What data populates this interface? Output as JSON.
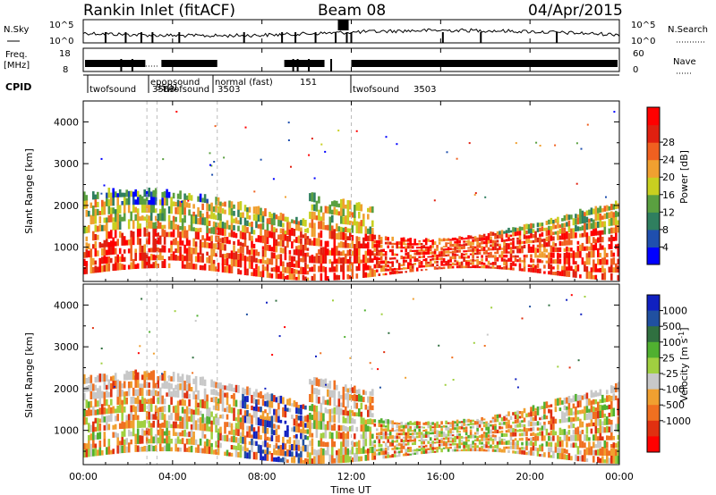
{
  "header": {
    "title": "Rankin Inlet (fitACF)",
    "beam": "Beam 08",
    "date": "04/Apr/2015"
  },
  "panels": {
    "nsky_label": "N.Sky",
    "nsearch_label": "N.Search",
    "freq_label_1": "Freq.",
    "freq_label_2": "[MHz]",
    "nave_label": "Nave",
    "cpid_label": "CPID",
    "nsky_ticks": [
      "10^5",
      "10^0"
    ],
    "nsearch_ticks": [
      "10^5",
      "10^0"
    ],
    "freq_ticks": [
      "18",
      "8"
    ],
    "nave_ticks": [
      "60",
      "0"
    ]
  },
  "cpid_segments": [
    {
      "text": "twofsound",
      "time": 0.1
    },
    {
      "text": "3503",
      "time": 3.0
    },
    {
      "text": "epopsound",
      "time": 3.2
    },
    {
      "text": "3501",
      "time": 3.35
    },
    {
      "text": "twofsound",
      "time": 3.4
    },
    {
      "text": "normal (fast)",
      "time": 6.0
    },
    {
      "text": "151",
      "time": 9.6
    },
    {
      "text": "3503",
      "time": 6.0
    },
    {
      "text": "twofsound",
      "time": 12.0
    },
    {
      "text": "3503",
      "time": 14.0
    }
  ],
  "chart_data": [
    {
      "type": "heatmap",
      "quantity": "Power",
      "ylabel": "Slant Range [km]",
      "colorbar_label": "Power [dB]",
      "ylim": [
        180,
        4500
      ],
      "yticks": [
        1000,
        2000,
        3000,
        4000
      ],
      "xlim": [
        0,
        24
      ],
      "colorbar_ticks": [
        "4",
        "8",
        "12",
        "16",
        "20",
        "24",
        "28"
      ],
      "colorbar_colors": [
        "#0000ff",
        "#1f4fae",
        "#2f7f5f",
        "#5aa040",
        "#c8d020",
        "#f0a030",
        "#f06020",
        "#e02010",
        "#ff0000"
      ]
    },
    {
      "type": "heatmap",
      "quantity": "Velocity",
      "ylabel": "Slant Range [km]",
      "xlabel": "Time UT",
      "colorbar_label": "Velocity [m s",
      "colorbar_label_sup": "-1",
      "colorbar_label_end": "]",
      "ylim": [
        180,
        4500
      ],
      "yticks": [
        1000,
        2000,
        3000,
        4000
      ],
      "xlim": [
        0,
        24
      ],
      "xticks": [
        "00:00",
        "04:00",
        "08:00",
        "12:00",
        "16:00",
        "20:00",
        "00:00"
      ],
      "colorbar_ticks": [
        "1000",
        "500",
        "100",
        "25",
        "-25",
        "-100",
        "-500",
        "-1000"
      ],
      "colorbar_colors": [
        "#1020c0",
        "#2050a0",
        "#307040",
        "#50b030",
        "#a0d040",
        "#c8c8c8",
        "#f0a030",
        "#f07020",
        "#e03010",
        "#ff0000"
      ]
    }
  ]
}
